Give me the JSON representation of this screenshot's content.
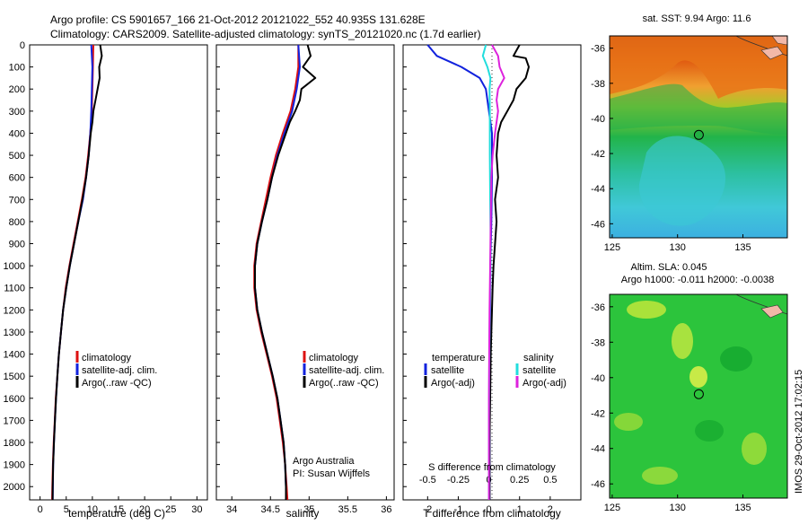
{
  "header": {
    "line1": "Argo profile: CS 5901657_166 21-Oct-2012 20121022_552 40.935S 131.628E",
    "line2": "Climatology: CARS2009. Satellite-adjusted climatology: synTS_20121020.nc (1.7d earlier)"
  },
  "colors": {
    "climatology": "#dd1111",
    "satellite": "#1122dd",
    "argo": "#000000",
    "argo_salinity": "#dd22dd",
    "satellite_salinity": "#22dddd"
  },
  "depth_ticks": [
    0,
    100,
    200,
    300,
    400,
    500,
    600,
    700,
    800,
    900,
    1000,
    1100,
    1200,
    1300,
    1400,
    1500,
    1600,
    1700,
    1800,
    1900,
    2000
  ],
  "chart_data": [
    {
      "type": "line",
      "id": "temperature",
      "xlabel": "temperature (deg C)",
      "xlim": [
        -2,
        32
      ],
      "xticks": [
        0,
        5,
        10,
        15,
        20,
        25,
        30
      ],
      "ylim": [
        0,
        2060
      ],
      "legend": {
        "placement": "bottom-center",
        "entries": [
          "climatology",
          "satellite-adj. clim.",
          "Argo(..raw -QC)"
        ]
      },
      "series": [
        {
          "name": "climatology",
          "color": "climatology",
          "depth": [
            0,
            100,
            200,
            300,
            400,
            500,
            600,
            700,
            800,
            900,
            1000,
            1100,
            1200,
            1300,
            1400,
            1500,
            1600,
            1700,
            1800,
            1900,
            2000,
            2060
          ],
          "values": [
            10.2,
            10.1,
            10.0,
            9.9,
            9.6,
            9.2,
            8.7,
            8.0,
            7.2,
            6.4,
            5.6,
            4.9,
            4.4,
            4.0,
            3.6,
            3.3,
            3.0,
            2.8,
            2.6,
            2.45,
            2.35,
            2.3
          ]
        },
        {
          "name": "satellite-adj. clim.",
          "color": "satellite",
          "depth": [
            0,
            100,
            200,
            300,
            400,
            500,
            600,
            700,
            800,
            900,
            1000,
            1100,
            1200,
            1300,
            1400,
            1500,
            1600,
            1700,
            1800,
            1900,
            2000,
            2060
          ],
          "values": [
            9.8,
            10.0,
            9.9,
            9.8,
            9.6,
            9.3,
            8.8,
            8.2,
            7.3,
            6.5,
            5.7,
            5.0,
            4.4,
            4.0,
            3.6,
            3.3,
            3.05,
            2.85,
            2.65,
            2.5,
            2.45,
            2.42
          ]
        },
        {
          "name": "Argo(..raw -QC)",
          "color": "argo",
          "depth": [
            0,
            50,
            100,
            150,
            200,
            250,
            300,
            350,
            400,
            500,
            600,
            700,
            800,
            900,
            1000,
            1100,
            1200,
            1300,
            1400,
            1500,
            1600,
            1700,
            1800,
            1900,
            2000,
            2060
          ],
          "values": [
            11.5,
            11.8,
            11.3,
            11.4,
            11.0,
            10.6,
            10.2,
            10.0,
            9.7,
            9.3,
            8.8,
            8.1,
            7.3,
            6.5,
            5.7,
            5.0,
            4.4,
            4.0,
            3.6,
            3.3,
            3.05,
            2.85,
            2.65,
            2.5,
            2.42,
            2.4
          ]
        }
      ]
    },
    {
      "type": "line",
      "id": "salinity",
      "xlabel": "salinity",
      "xlim": [
        33.8,
        36.1
      ],
      "xticks": [
        34,
        34.5,
        35,
        35.5,
        36
      ],
      "ylim": [
        0,
        2060
      ],
      "legend": {
        "placement": "center",
        "entries": [
          "climatology",
          "satellite-adj. clim.",
          "Argo(..raw -QC)"
        ]
      },
      "annotations": [
        "Argo Australia",
        "PI: Susan Wijffels"
      ],
      "series": [
        {
          "name": "climatology",
          "color": "climatology",
          "depth": [
            0,
            100,
            200,
            300,
            400,
            500,
            600,
            700,
            800,
            900,
            1000,
            1100,
            1200,
            1300,
            1400,
            1500,
            1600,
            1700,
            1800,
            1900,
            2000,
            2060
          ],
          "values": [
            34.86,
            34.86,
            34.82,
            34.76,
            34.66,
            34.57,
            34.5,
            34.44,
            34.38,
            34.32,
            34.29,
            34.29,
            34.32,
            34.38,
            34.45,
            34.52,
            34.58,
            34.62,
            34.66,
            34.69,
            34.71,
            34.72
          ]
        },
        {
          "name": "satellite-adj. clim.",
          "color": "satellite",
          "depth": [
            0,
            100,
            200,
            300,
            400,
            500,
            600,
            700,
            800,
            900,
            1000,
            1100,
            1200,
            1300,
            1400,
            1500,
            1600,
            1700,
            1800,
            1900,
            2000,
            2060
          ],
          "values": [
            34.86,
            34.88,
            34.84,
            34.78,
            34.68,
            34.59,
            34.52,
            34.46,
            34.39,
            34.33,
            34.3,
            34.3,
            34.33,
            34.39,
            34.46,
            34.53,
            34.59,
            34.63,
            34.67,
            34.69,
            34.7,
            34.7
          ]
        },
        {
          "name": "Argo(..raw -QC)",
          "color": "argo",
          "depth": [
            0,
            50,
            100,
            150,
            200,
            250,
            300,
            350,
            400,
            500,
            600,
            700,
            800,
            900,
            1000,
            1100,
            1200,
            1300,
            1400,
            1500,
            1600,
            1700,
            1800,
            1900,
            2000,
            2060
          ],
          "values": [
            34.98,
            35.02,
            34.92,
            35.08,
            34.9,
            34.88,
            34.82,
            34.75,
            34.7,
            34.6,
            34.52,
            34.46,
            34.39,
            34.33,
            34.3,
            34.3,
            34.33,
            34.39,
            34.46,
            34.53,
            34.59,
            34.63,
            34.67,
            34.69,
            34.7,
            34.7
          ]
        }
      ]
    },
    {
      "type": "line",
      "id": "difference",
      "xlabel": "T difference from climatology",
      "xlabel_top": "S difference from climatology",
      "xlim": [
        -2.8,
        3.0
      ],
      "xticks": [
        -2,
        -1,
        0,
        1,
        2
      ],
      "xticks_top": [
        "-0.5",
        "-0.25",
        "0",
        "0.25",
        "0.5"
      ],
      "ylim": [
        0,
        2060
      ],
      "legend": {
        "placement": "center",
        "groups": [
          {
            "heading": "temperature",
            "entries": [
              "satellite",
              "Argo(-adj)"
            ]
          },
          {
            "heading": "salinity",
            "entries": [
              "satellite",
              "Argo(-adj)"
            ]
          }
        ]
      },
      "series": [
        {
          "name": "satellite",
          "group": "temperature",
          "color": "satellite",
          "depth": [
            0,
            50,
            100,
            150,
            200,
            250,
            300,
            400,
            500,
            600,
            800,
            1000,
            1200,
            1500,
            2000,
            2060
          ],
          "values": [
            -2.0,
            -1.7,
            -0.9,
            -0.3,
            -0.1,
            -0.05,
            0,
            0.1,
            0.1,
            0.1,
            0.08,
            0.05,
            0.04,
            0.03,
            0.02,
            0.02
          ]
        },
        {
          "name": "Argo(-adj)",
          "group": "temperature",
          "color": "argo",
          "depth": [
            0,
            50,
            60,
            100,
            150,
            200,
            250,
            300,
            350,
            400,
            500,
            600,
            700,
            800,
            900,
            1000,
            1100,
            1200,
            1300,
            1400,
            1500,
            1600,
            1700,
            1800,
            1900,
            2000,
            2060
          ],
          "values": [
            1.0,
            0.8,
            1.2,
            1.3,
            1.2,
            0.9,
            0.8,
            0.6,
            0.4,
            0.3,
            0.25,
            0.3,
            0.2,
            0.25,
            0.2,
            0.15,
            0.12,
            0.1,
            0.08,
            0.06,
            0.05,
            0.04,
            0.03,
            0.02,
            0.02,
            0.02,
            0.02
          ]
        },
        {
          "name": "satellite",
          "group": "salinity",
          "color": "satellite_salinity",
          "depth": [
            0,
            50,
            100,
            150,
            200,
            300,
            500,
            700,
            900,
            1100,
            1300,
            1500,
            1700,
            1900,
            2060
          ],
          "values": [
            -0.1,
            -0.2,
            -0.05,
            0.05,
            0.02,
            0.03,
            0.03,
            0.04,
            0.06,
            0.04,
            0.02,
            0.01,
            0,
            0,
            0
          ]
        },
        {
          "name": "Argo(-adj)",
          "group": "salinity",
          "color": "argo_salinity",
          "depth": [
            0,
            50,
            100,
            150,
            200,
            250,
            300,
            400,
            500,
            600,
            800,
            1000,
            1200,
            1400,
            1600,
            1800,
            2060
          ],
          "values": [
            0.1,
            0.3,
            0.35,
            0.5,
            0.3,
            0.25,
            0.3,
            0.2,
            0.12,
            0.08,
            0.06,
            0.04,
            0.02,
            0.01,
            0,
            0,
            0
          ]
        }
      ]
    }
  ],
  "maps": [
    {
      "id": "sst",
      "title": "sat. SST: 9.94 Argo: 11.6",
      "xticks": [
        125,
        130,
        135
      ],
      "yticks": [
        -36,
        -38,
        -40,
        -42,
        -44,
        -46
      ],
      "xlim": [
        124.8,
        138.4
      ],
      "ylim": [
        -35.3,
        -46.8
      ],
      "argo_lon": 131.628,
      "argo_lat": -40.935
    },
    {
      "id": "sla",
      "title1": "Altim. SLA: 0.045",
      "title2": "Argo h1000: -0.011 h2000: -0.0038",
      "xticks": [
        125,
        130,
        135
      ],
      "yticks": [
        -36,
        -38,
        -40,
        -42,
        -44,
        -46
      ],
      "xlim": [
        124.8,
        138.4
      ],
      "ylim": [
        -35.3,
        -46.8
      ],
      "argo_lon": 131.628,
      "argo_lat": -40.935
    }
  ],
  "footer": {
    "stamp": "IMOS 29-Oct-2012 17:02:15"
  }
}
